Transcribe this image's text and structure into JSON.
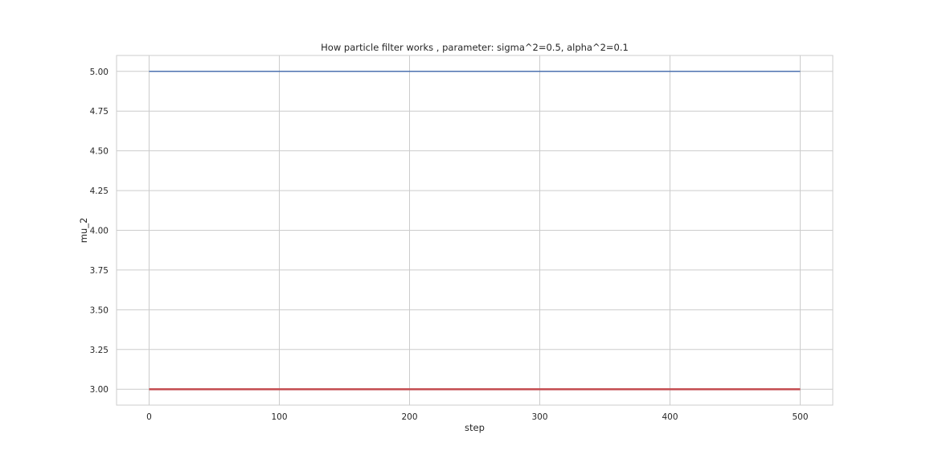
{
  "chart_data": {
    "type": "line",
    "title": "How particle filter works , parameter: sigma^2=0.5, alpha^2=0.1",
    "xlabel": "step",
    "ylabel": "mu_2",
    "xlim": [
      -25,
      525
    ],
    "ylim": [
      2.9,
      5.1
    ],
    "xticks": [
      0,
      100,
      200,
      300,
      400,
      500
    ],
    "xtick_labels": [
      "0",
      "100",
      "200",
      "300",
      "400",
      "500"
    ],
    "yticks": [
      3.0,
      3.25,
      3.5,
      3.75,
      4.0,
      4.25,
      4.5,
      4.75,
      5.0
    ],
    "ytick_labels": [
      "3.00",
      "3.25",
      "3.50",
      "3.75",
      "4.00",
      "4.25",
      "4.50",
      "4.75",
      "5.00"
    ],
    "grid": true,
    "series": [
      {
        "x": [
          0,
          500
        ],
        "y": [
          5.0,
          5.0
        ],
        "color": "#4c72b0",
        "width": 1.5
      },
      {
        "x": [
          0,
          500
        ],
        "y": [
          3.0,
          3.0
        ],
        "color": "#dd8452",
        "width": 1.5
      },
      {
        "x": [
          0,
          500
        ],
        "y": [
          3.0,
          3.0
        ],
        "color": "#c44e52",
        "width": 2.5
      }
    ]
  },
  "style": {
    "background": "#ffffff",
    "grid_color": "#cccccc",
    "frame_color": "#cccccc",
    "text_color": "#262626"
  }
}
